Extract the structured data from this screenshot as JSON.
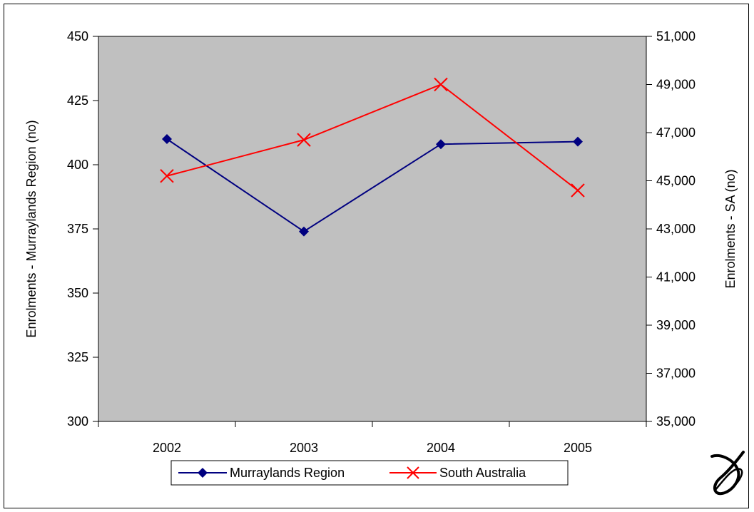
{
  "chart_data": {
    "type": "line",
    "categories": [
      "2002",
      "2003",
      "2004",
      "2005"
    ],
    "series": [
      {
        "name": "Murraylands Region",
        "axis": "left",
        "values": [
          410,
          374,
          408,
          409
        ],
        "color": "#000080",
        "marker": "diamond"
      },
      {
        "name": "South Australia",
        "axis": "right",
        "values": [
          45200,
          46700,
          49000,
          44600
        ],
        "color": "#ff0000",
        "marker": "x"
      }
    ],
    "ylabel": "Enrolments - Murraylands Region (no)",
    "y2label": "Enrolments - SA (no)",
    "ylim": [
      300,
      450
    ],
    "yticks": [
      "300",
      "325",
      "350",
      "375",
      "400",
      "425",
      "450"
    ],
    "y2lim": [
      35000,
      51000
    ],
    "y2ticks": [
      "35,000",
      "37,000",
      "39,000",
      "41,000",
      "43,000",
      "45,000",
      "47,000",
      "49,000",
      "51,000"
    ],
    "plot_background": "#c0c0c0",
    "grid": false,
    "legend": "bottom"
  }
}
